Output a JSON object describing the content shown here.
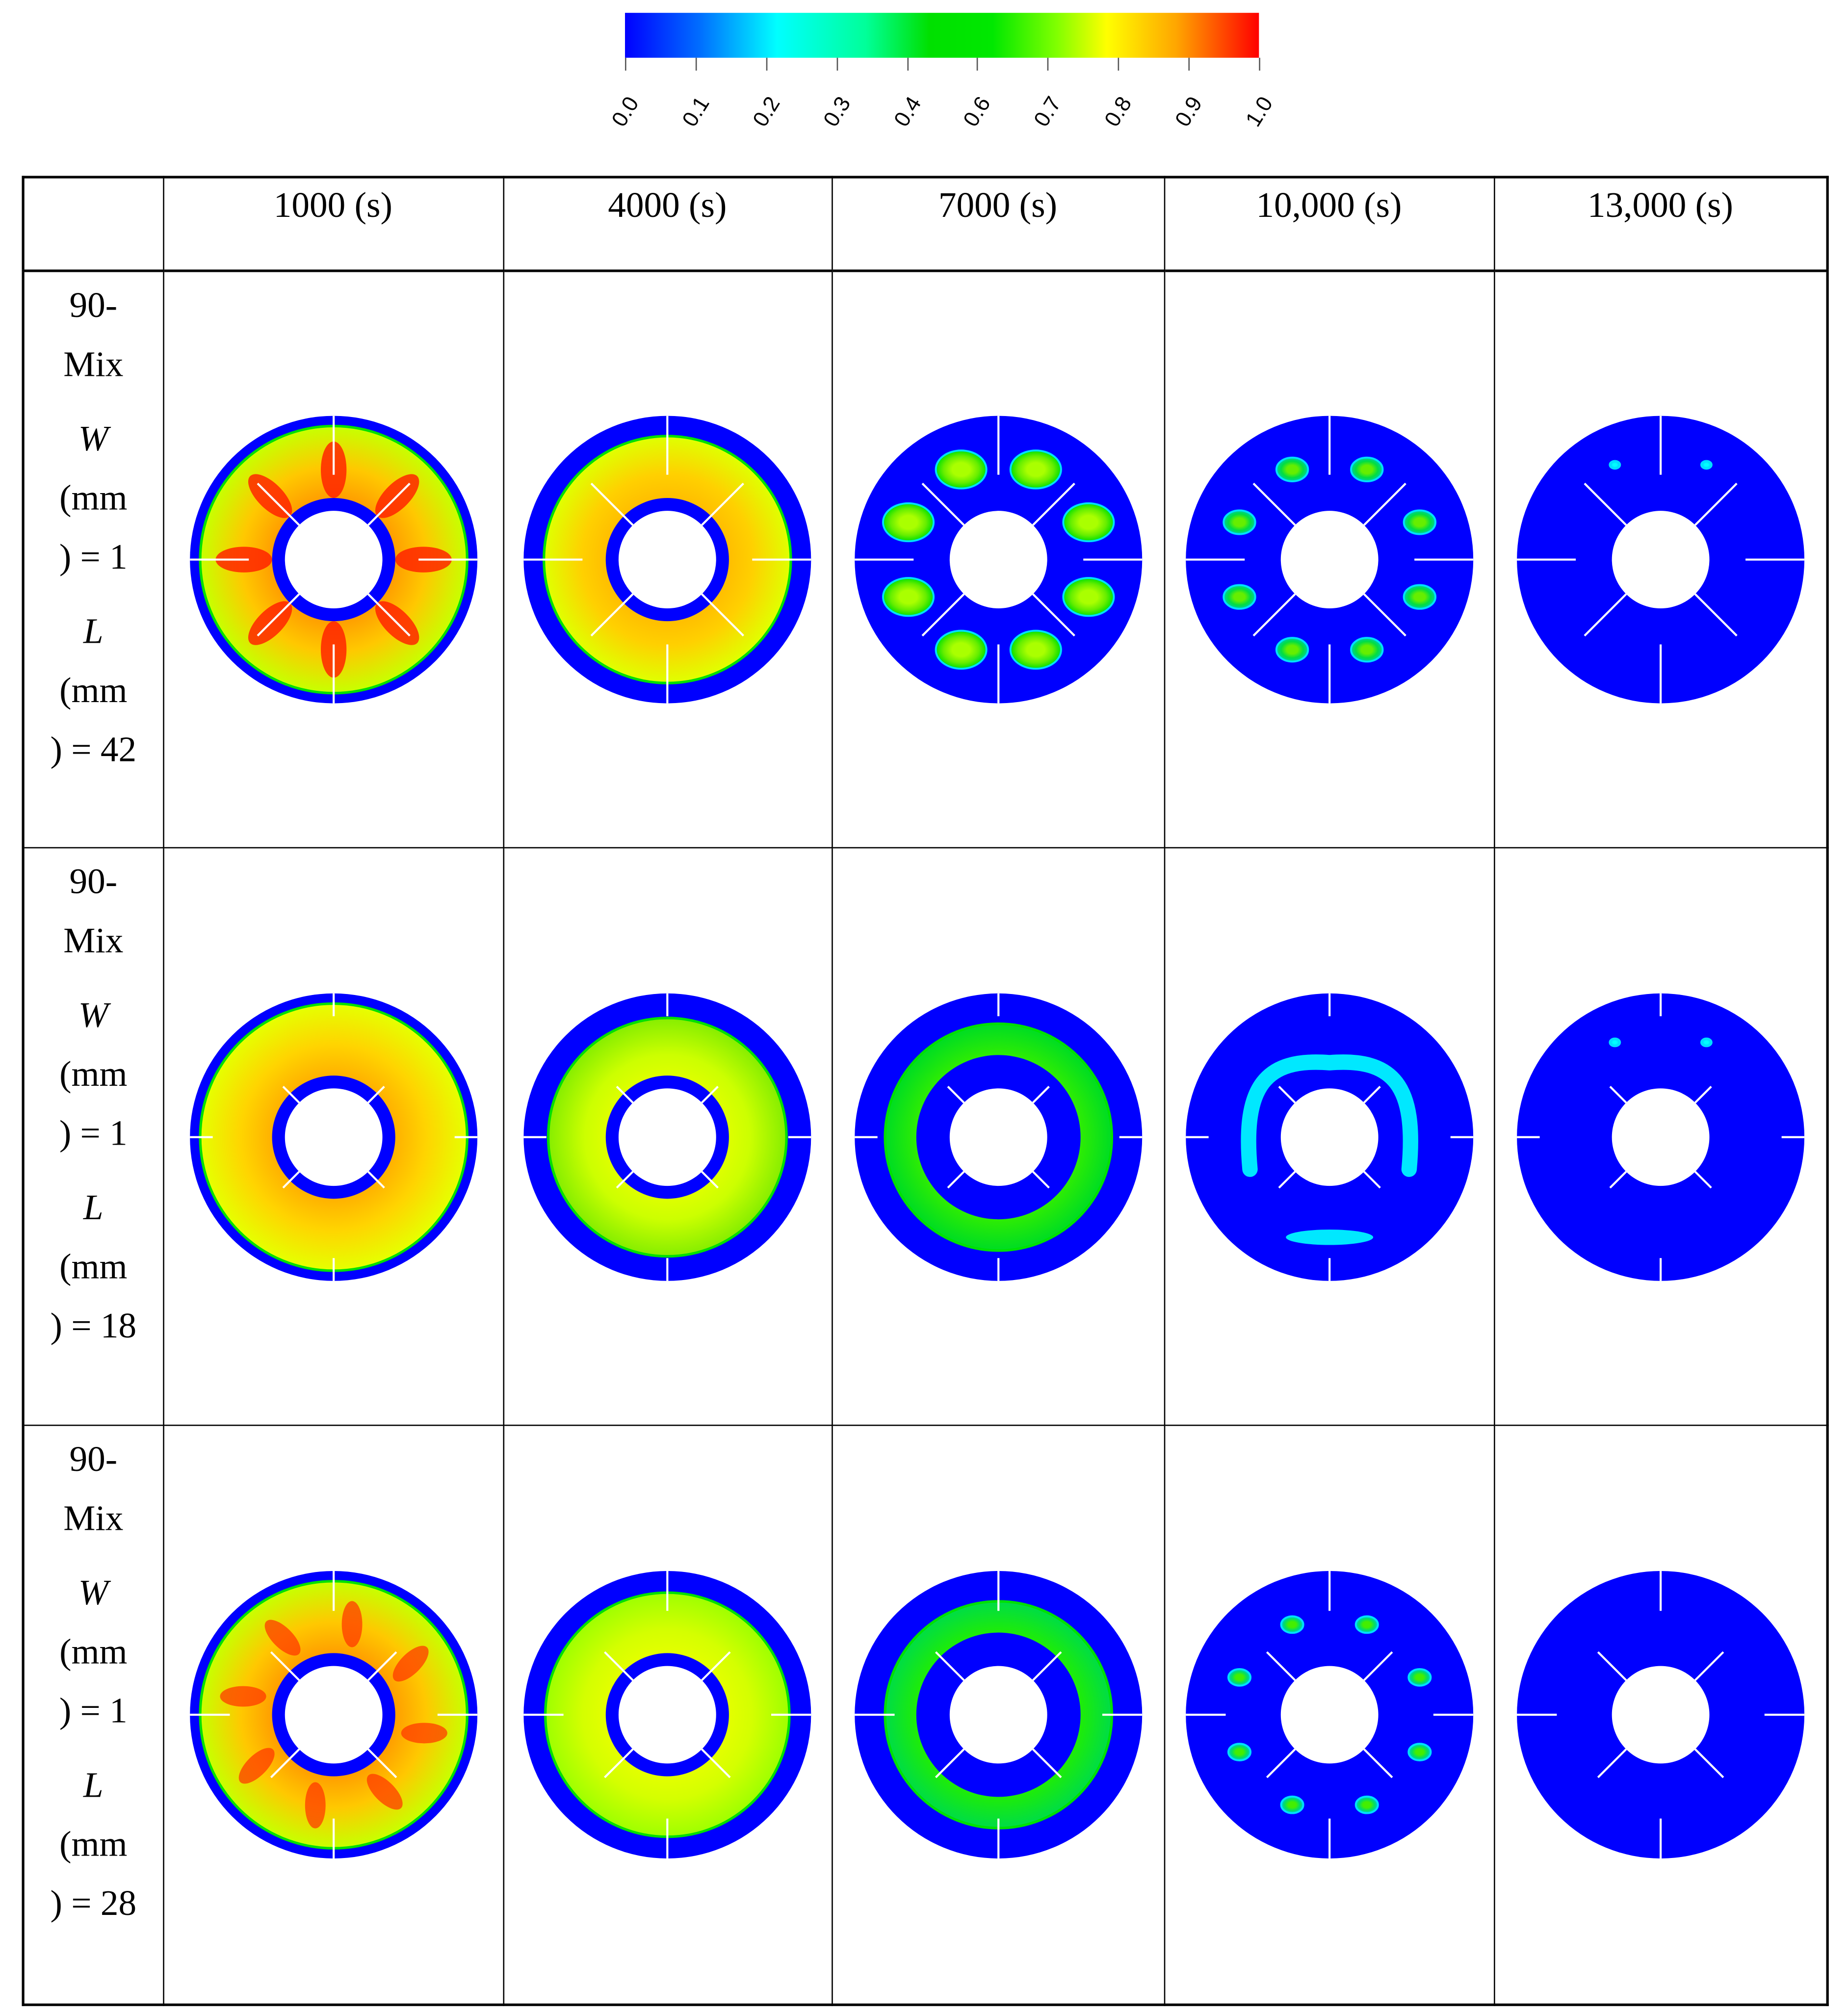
{
  "colorbar": {
    "min": 0.0,
    "max": 1.0,
    "tick_labels": [
      "0.0",
      "0.1",
      "0.2",
      "0.3",
      "0.4",
      "0.6",
      "0.7",
      "0.8",
      "0.9",
      "1.0"
    ],
    "colors": [
      "#0000ff",
      "#0070ff",
      "#00ffff",
      "#00ff99",
      "#00e000",
      "#7fff00",
      "#ffff00",
      "#ffa500",
      "#ff0000"
    ]
  },
  "table": {
    "corner": "",
    "columns": [
      "1000 (s)",
      "4000 (s)",
      "7000 (s)",
      "10,000 (s)",
      "13,000 (s)"
    ],
    "rows": [
      {
        "case": "90-",
        "case2": "Mix",
        "w_sym": "W",
        "w_unit1": "(mm",
        "w_unit2": ") = 1",
        "l_sym": "L",
        "l_unit1": "(mm",
        "l_unit2": ") = 42",
        "fin_length_mm": 42
      },
      {
        "case": "90-",
        "case2": "Mix",
        "w_sym": "W",
        "w_unit1": "(mm",
        "w_unit2": ") = 1",
        "l_sym": "L",
        "l_unit1": "(mm",
        "l_unit2": ") = 18",
        "fin_length_mm": 18
      },
      {
        "case": "90-",
        "case2": "Mix",
        "w_sym": "W",
        "w_unit1": "(mm",
        "w_unit2": ") = 1",
        "l_sym": "L",
        "l_unit1": "(mm",
        "l_unit2": ") = 28",
        "fin_length_mm": 28
      }
    ]
  },
  "chart_data": {
    "type": "heatmap",
    "title": "",
    "colorbar_label": "",
    "colorbar_range": [
      0.0,
      1.0
    ],
    "colorbar_ticks": [
      0.0,
      0.1,
      0.2,
      0.3,
      0.4,
      0.6,
      0.7,
      0.8,
      0.9,
      1.0
    ],
    "x": [
      "1000 (s)",
      "4000 (s)",
      "7000 (s)",
      "10,000 (s)",
      "13,000 (s)"
    ],
    "y": [
      "90-Mix W(mm)=1 L(mm)=42",
      "90-Mix W(mm)=1 L(mm)=18",
      "90-Mix W(mm)=1 L(mm)=28"
    ],
    "description": "Annular contour plots (liquid fraction-like field, 0 to 1) showing progressive solidification/melting with 8 radial fins; field decreases over time toward 0 (blue).",
    "approx_dominant_value": [
      [
        0.9,
        0.85,
        0.6,
        0.45,
        0.0
      ],
      [
        0.8,
        0.7,
        0.6,
        0.35,
        0.0
      ],
      [
        0.9,
        0.75,
        0.6,
        0.45,
        0.0
      ]
    ]
  }
}
